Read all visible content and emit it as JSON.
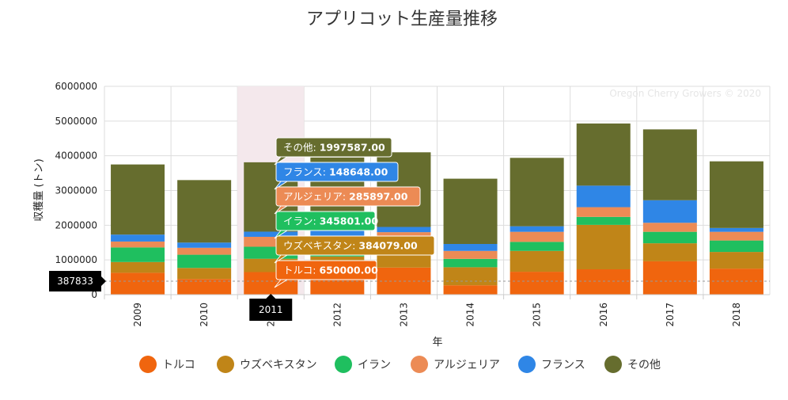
{
  "chart_data": {
    "type": "bar",
    "stacked": true,
    "title": "アプリコット生産量推移",
    "xlabel": "年",
    "ylabel": "収穫量 (トン)",
    "ylim": [
      0,
      6000000
    ],
    "yticks": [
      "0",
      "1000000",
      "2000000",
      "3000000",
      "4000000",
      "5000000",
      "6000000"
    ],
    "categories": [
      "2009",
      "2010",
      "2011",
      "2012",
      "2013",
      "2014",
      "2015",
      "2016",
      "2017",
      "2018"
    ],
    "series": [
      {
        "name": "トルコ",
        "color": "#f0650e",
        "values": [
          630000,
          450000,
          650000,
          680000,
          780000,
          270000,
          660000,
          730000,
          960000,
          750000
        ]
      },
      {
        "name": "ウズベキスタン",
        "color": "#c08518",
        "values": [
          310000,
          320000,
          384079,
          420000,
          460000,
          520000,
          600000,
          1280000,
          520000,
          480000
        ]
      },
      {
        "name": "イラン",
        "color": "#1fbf5f",
        "values": [
          420000,
          380000,
          345801,
          320000,
          290000,
          240000,
          260000,
          230000,
          330000,
          330000
        ]
      },
      {
        "name": "アルジェリア",
        "color": "#ec8b55",
        "values": [
          170000,
          200000,
          285897,
          250000,
          270000,
          230000,
          290000,
          280000,
          260000,
          250000
        ]
      },
      {
        "name": "フランス",
        "color": "#2f86e6",
        "values": [
          200000,
          150000,
          148648,
          180000,
          150000,
          200000,
          160000,
          620000,
          650000,
          110000
        ]
      },
      {
        "name": "その他",
        "color": "#666d2e",
        "values": [
          2020000,
          1800000,
          1997587,
          2100000,
          2150000,
          1880000,
          1970000,
          1790000,
          2040000,
          1920000
        ]
      }
    ],
    "legend_position": "bottom",
    "grid": true,
    "watermark": "Oregon Cherry Growers © 2020",
    "highlight": {
      "category": "2011",
      "crosshair_value": "387833",
      "tooltip": [
        {
          "label": "その他",
          "value": "1997587.00"
        },
        {
          "label": "フランス",
          "value": "148648.00"
        },
        {
          "label": "アルジェリア",
          "value": "285897.00"
        },
        {
          "label": "イラン",
          "value": "345801.00"
        },
        {
          "label": "ウズベキスタン",
          "value": "384079.00"
        },
        {
          "label": "トルコ",
          "value": "650000.00"
        }
      ]
    }
  }
}
